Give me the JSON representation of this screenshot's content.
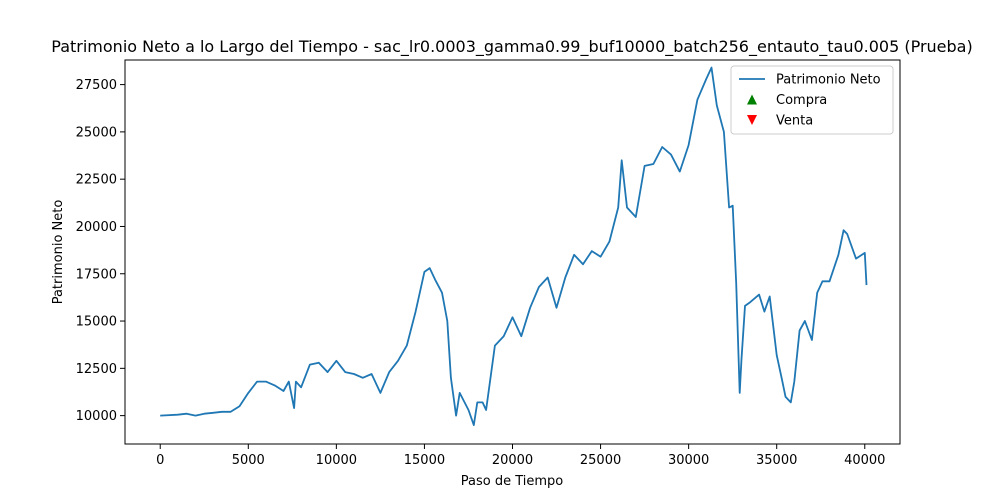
{
  "chart_data": {
    "type": "line",
    "title": "Patrimonio Neto a lo Largo del Tiempo - sac_lr0.0003_gamma0.99_buf10000_batch256_entauto_tau0.005 (Prueba)",
    "xlabel": "Paso de Tiempo",
    "ylabel": "Patrimonio Neto",
    "xlim": [
      -2000,
      42000
    ],
    "ylim": [
      8500,
      28800
    ],
    "xticks": [
      0,
      5000,
      10000,
      15000,
      20000,
      25000,
      30000,
      35000,
      40000
    ],
    "yticks": [
      10000,
      12500,
      15000,
      17500,
      20000,
      22500,
      25000,
      27500
    ],
    "grid": false,
    "legend_position": "top-right",
    "legend": [
      {
        "label": "Patrimonio Neto",
        "marker": "line",
        "color": "#1f77b4"
      },
      {
        "label": "Compra",
        "marker": "triangle-up",
        "color": "#008000"
      },
      {
        "label": "Venta",
        "marker": "triangle-down",
        "color": "#ff0000"
      }
    ],
    "series": [
      {
        "name": "Patrimonio Neto",
        "color": "#1f77b4",
        "x": [
          0,
          1000,
          1500,
          2000,
          2500,
          3000,
          3500,
          4000,
          4500,
          5000,
          5500,
          6000,
          6500,
          7000,
          7300,
          7600,
          7700,
          8000,
          8500,
          9000,
          9500,
          10000,
          10500,
          11000,
          11500,
          12000,
          12500,
          13000,
          13500,
          14000,
          14500,
          15000,
          15300,
          15600,
          16000,
          16300,
          16500,
          16800,
          17000,
          17500,
          17800,
          18000,
          18300,
          18500,
          19000,
          19500,
          20000,
          20500,
          21000,
          21500,
          22000,
          22500,
          23000,
          23500,
          24000,
          24500,
          25000,
          25500,
          26000,
          26200,
          26500,
          27000,
          27500,
          28000,
          28500,
          29000,
          29500,
          30000,
          30500,
          31000,
          31300,
          31600,
          32000,
          32300,
          32500,
          32700,
          32900,
          33000,
          33200,
          33500,
          34000,
          34300,
          34600,
          35000,
          35300,
          35500,
          35800,
          36000,
          36300,
          36600,
          37000,
          37300,
          37600,
          38000,
          38500,
          38800,
          39000,
          39500,
          40000,
          40100
        ],
        "values": [
          10000,
          10050,
          10100,
          10000,
          10100,
          10150,
          10200,
          10200,
          10500,
          11200,
          11800,
          11800,
          11600,
          11300,
          11800,
          10400,
          11800,
          11500,
          12700,
          12800,
          12300,
          12900,
          12300,
          12200,
          12000,
          12200,
          11200,
          12300,
          12900,
          13700,
          15500,
          17600,
          17800,
          17200,
          16500,
          15000,
          12000,
          10000,
          11200,
          10300,
          9500,
          10700,
          10700,
          10300,
          13700,
          14200,
          15200,
          14200,
          15700,
          16800,
          17300,
          15700,
          17300,
          18500,
          18000,
          18700,
          18400,
          19200,
          21000,
          23500,
          21000,
          20500,
          23200,
          23300,
          24200,
          23800,
          22900,
          24300,
          26700,
          27800,
          28400,
          26400,
          25000,
          21000,
          21100,
          17000,
          11200,
          13000,
          15800,
          16000,
          16400,
          15500,
          16300,
          13200,
          11900,
          11000,
          10700,
          11800,
          14500,
          15000,
          14000,
          16500,
          17100,
          17100,
          18500,
          19800,
          19600,
          18300,
          18600,
          16900
        ]
      }
    ]
  }
}
